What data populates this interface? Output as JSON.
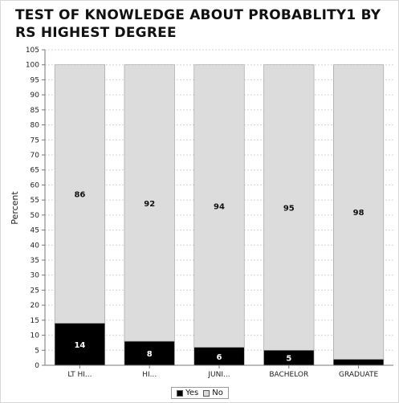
{
  "title": "TEST OF KNOWLEDGE ABOUT PROBABLITY1 BY RS HIGHEST DEGREE",
  "chart_data": {
    "type": "bar",
    "stacked": true,
    "title": "TEST OF KNOWLEDGE ABOUT PROBABLITY1 BY RS HIGHEST DEGREE",
    "xlabel": "",
    "ylabel": "Percent",
    "ylim": [
      0,
      105
    ],
    "yticks": [
      0,
      5,
      10,
      15,
      20,
      25,
      30,
      35,
      40,
      45,
      50,
      55,
      60,
      65,
      70,
      75,
      80,
      85,
      90,
      95,
      100,
      105
    ],
    "categories": [
      "LT HI...",
      "HI...",
      "JUNI...",
      "BACHELOR",
      "GRADUATE"
    ],
    "series": [
      {
        "name": "Yes",
        "color": "#000000",
        "values": [
          14,
          8,
          6,
          5,
          2
        ],
        "labels": [
          "14",
          "8",
          "6",
          "5",
          ""
        ]
      },
      {
        "name": "No",
        "color": "#dcdcdc",
        "values": [
          86,
          92,
          94,
          95,
          98
        ],
        "labels": [
          "86",
          "92",
          "94",
          "95",
          "98"
        ]
      }
    ],
    "grid": true,
    "legend_position": "bottom"
  }
}
